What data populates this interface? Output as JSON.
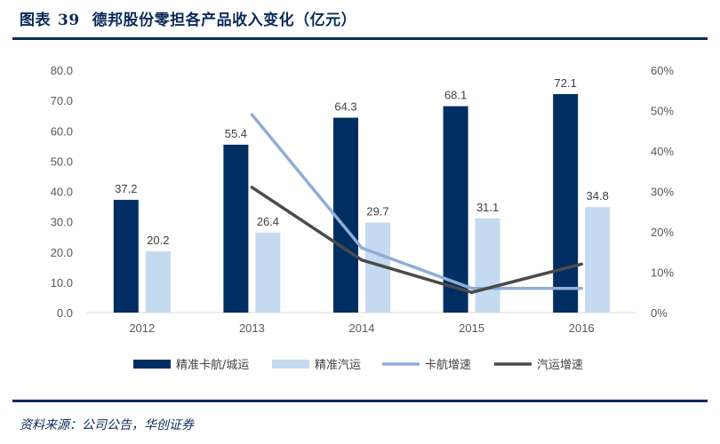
{
  "header": {
    "figure_label": "图表",
    "figure_number": "39",
    "title": "德邦股份零担各产品收入变化（亿元）"
  },
  "footer": {
    "source": "资料来源：公司公告，华创证券"
  },
  "colors": {
    "accent": "#0b2a5b",
    "series_dark": "#002d62",
    "series_light": "#c5d9f1",
    "line_light": "#8eaed6",
    "line_dark": "#4a4a4a",
    "axis": "#d9d9d9"
  },
  "chart_data": {
    "type": "bar",
    "categories": [
      "2012",
      "2013",
      "2014",
      "2015",
      "2016"
    ],
    "series": [
      {
        "name": "精准卡航/城运",
        "type": "bar",
        "axis": "left",
        "values": [
          37.2,
          55.4,
          64.3,
          68.1,
          72.1
        ]
      },
      {
        "name": "精准汽运",
        "type": "bar",
        "axis": "left",
        "values": [
          20.2,
          26.4,
          29.7,
          31.1,
          34.8
        ]
      },
      {
        "name": "卡航增速",
        "type": "line",
        "axis": "right",
        "values": [
          null,
          0.49,
          0.16,
          0.06,
          0.06
        ]
      },
      {
        "name": "汽运增速",
        "type": "line",
        "axis": "right",
        "values": [
          null,
          0.31,
          0.13,
          0.05,
          0.12
        ]
      }
    ],
    "y_left": {
      "min": 0,
      "max": 80,
      "step": 10,
      "tick_labels": [
        "0.0",
        "10.0",
        "20.0",
        "30.0",
        "40.0",
        "50.0",
        "60.0",
        "70.0",
        "80.0"
      ]
    },
    "y_right": {
      "min": 0,
      "max": 0.6,
      "step": 0.1,
      "tick_labels": [
        "0%",
        "10%",
        "20%",
        "30%",
        "40%",
        "50%",
        "60%"
      ]
    },
    "data_labels": {
      "精准卡航/城运": [
        "37.2",
        "55.4",
        "64.3",
        "68.1",
        "72.1"
      ],
      "精准汽运": [
        "20.2",
        "26.4",
        "29.7",
        "31.1",
        "34.8"
      ]
    },
    "grid": false,
    "legend_position": "bottom"
  }
}
